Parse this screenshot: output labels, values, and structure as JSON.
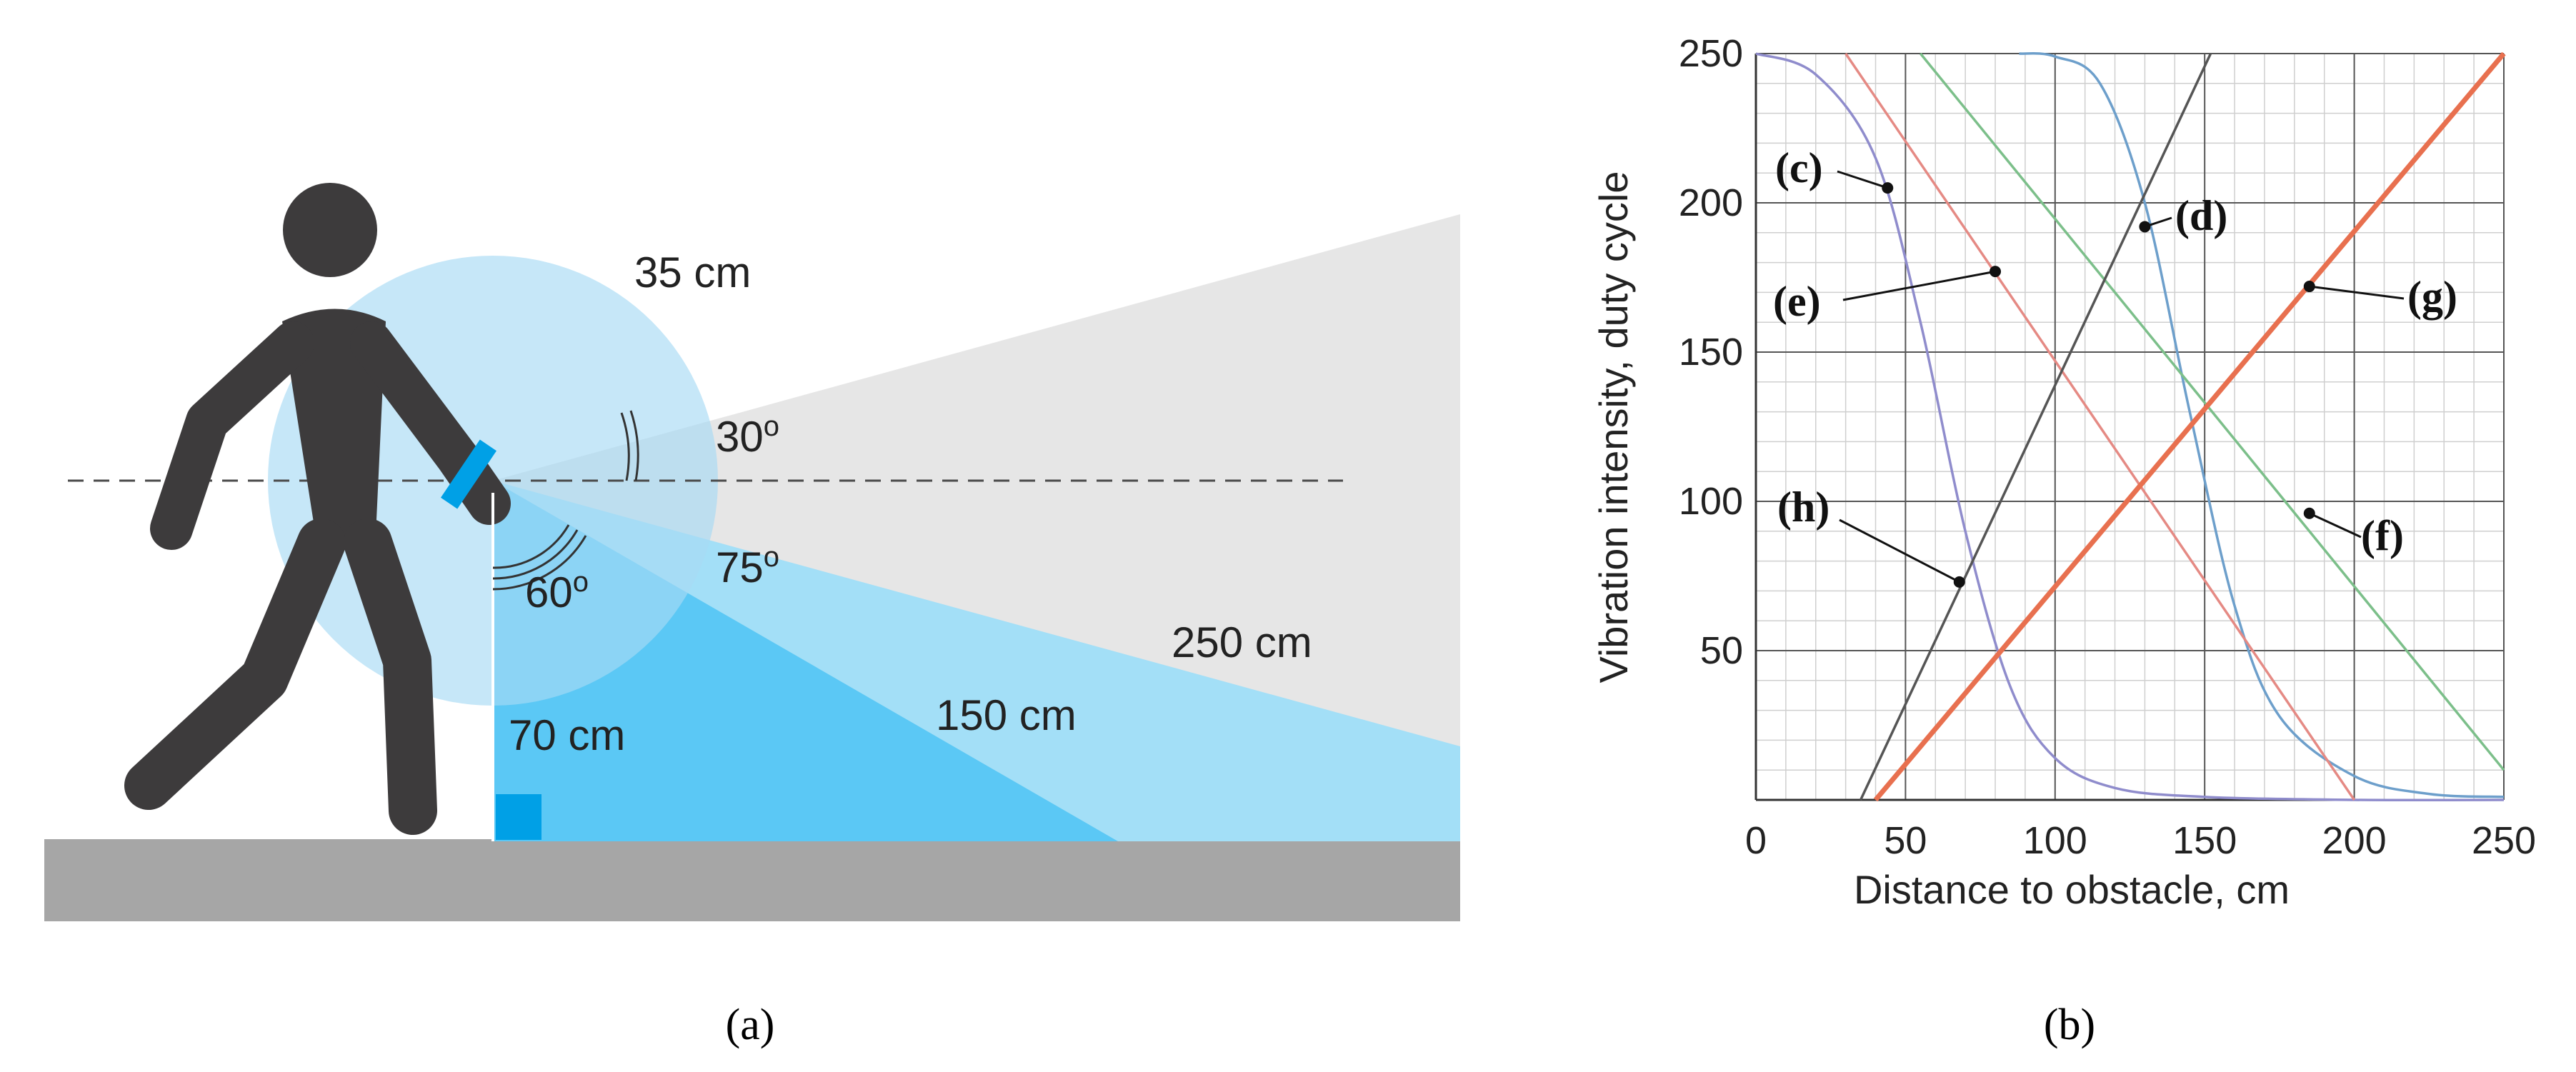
{
  "panel_a": {
    "caption": "(a)",
    "labels": {
      "radius_near": "35 cm",
      "angle_up": "30",
      "angle_mid": "75",
      "angle_down": "60",
      "degree_mark": "o",
      "range_far": "250 cm",
      "range_mid": "150 cm",
      "height": "70 cm"
    },
    "colors": {
      "person": "#3d3b3c",
      "ground": "#a6a6a6",
      "far_cone": "#e6e6e6",
      "mid_cone": "#a3dff7",
      "near_cone": "#5bc8f5",
      "sensor": "#00a0e6",
      "radius_circle": "#a8daf4"
    }
  },
  "panel_b": {
    "caption": "(b)",
    "chart_data": {
      "type": "line",
      "xlabel": "Distance to obstacle, cm",
      "ylabel": "Vibration intensity, duty cycle",
      "xlim": [
        0,
        250
      ],
      "ylim": [
        0,
        250
      ],
      "x_ticks": [
        "0",
        "50",
        "100",
        "150",
        "200",
        "250"
      ],
      "y_ticks": [
        "50",
        "100",
        "150",
        "200",
        "250"
      ],
      "grid": true,
      "series": [
        {
          "name": "(c)",
          "color": "#8f8ccc",
          "kind": "sigmoid",
          "x": [
            0,
            20,
            40,
            55,
            70,
            85,
            100,
            120,
            150,
            200,
            250
          ],
          "values": [
            250,
            243,
            215,
            160,
            90,
            38,
            14,
            4,
            1,
            0,
            0
          ],
          "label_point": {
            "x": 44,
            "y": 205
          }
        },
        {
          "name": "(d)",
          "color": "#6d9fcb",
          "kind": "sigmoid",
          "x": [
            88,
            100,
            115,
            130,
            145,
            160,
            175,
            200,
            225,
            250
          ],
          "values": [
            250,
            249,
            240,
            200,
            130,
            65,
            28,
            8,
            2,
            1
          ],
          "label_point": {
            "x": 130,
            "y": 192
          }
        },
        {
          "name": "(e)",
          "color": "#e58a84",
          "kind": "line",
          "x": [
            30,
            200
          ],
          "values": [
            250,
            0
          ],
          "label_point": {
            "x": 80,
            "y": 177
          }
        },
        {
          "name": "(f)",
          "color": "#7cbf8a",
          "kind": "line",
          "x": [
            55,
            250
          ],
          "values": [
            250,
            10
          ],
          "label_point": {
            "x": 185,
            "y": 96
          }
        },
        {
          "name": "(g)",
          "color": "#e8704f",
          "kind": "line",
          "x": [
            40,
            250
          ],
          "values": [
            0,
            250
          ],
          "label_point": {
            "x": 185,
            "y": 172
          }
        },
        {
          "name": "(h)",
          "color": "#555555",
          "kind": "line",
          "x": [
            35,
            152
          ],
          "values": [
            0,
            250
          ],
          "label_point": {
            "x": 68,
            "y": 73
          }
        }
      ]
    }
  }
}
